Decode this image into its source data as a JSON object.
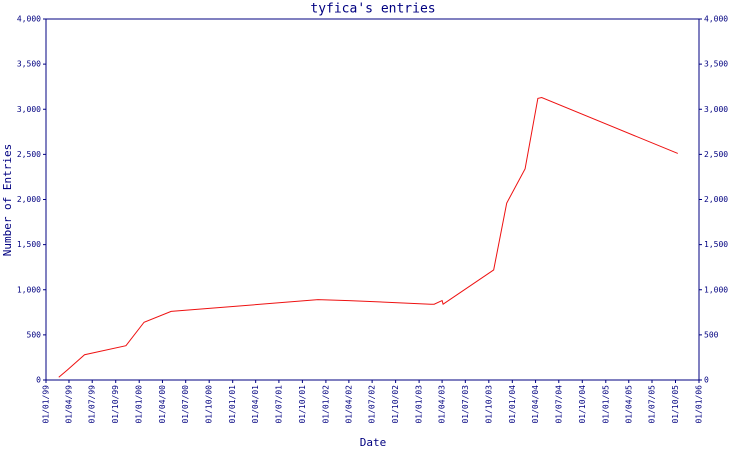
{
  "chart_data": {
    "type": "line",
    "title": "tyfica's entries",
    "xlabel": "Date",
    "ylabel": "Number of Entries",
    "x": [
      "1999-02-20",
      "1999-03-25",
      "1999-06-01",
      "1999-11-10",
      "2000-01-20",
      "2000-05-05",
      "2001-12-01",
      "2002-04-01",
      "2003-02-15",
      "2003-03-01",
      "2003-04-01",
      "2003-04-05",
      "2003-10-20",
      "2003-12-10",
      "2004-02-20",
      "2004-04-10",
      "2004-04-25",
      "2005-10-10"
    ],
    "series": [
      {
        "name": "Entries",
        "color": "#ee1111",
        "values": [
          30,
          110,
          280,
          380,
          640,
          760,
          890,
          880,
          840,
          840,
          880,
          840,
          1220,
          1960,
          2340,
          3120,
          3130,
          2510
        ]
      }
    ],
    "xlim": [
      "1999-01-01",
      "2006-01-01"
    ],
    "xticks": [
      {
        "value": "1999-01-01",
        "label": "01/01/99"
      },
      {
        "value": "1999-04-01",
        "label": "01/04/99"
      },
      {
        "value": "1999-07-01",
        "label": "01/07/99"
      },
      {
        "value": "1999-10-01",
        "label": "01/10/99"
      },
      {
        "value": "2000-01-01",
        "label": "01/01/00"
      },
      {
        "value": "2000-04-01",
        "label": "01/04/00"
      },
      {
        "value": "2000-07-01",
        "label": "01/07/00"
      },
      {
        "value": "2000-10-01",
        "label": "01/10/00"
      },
      {
        "value": "2001-01-01",
        "label": "01/01/01"
      },
      {
        "value": "2001-04-01",
        "label": "01/04/01"
      },
      {
        "value": "2001-07-01",
        "label": "01/07/01"
      },
      {
        "value": "2001-10-01",
        "label": "01/10/01"
      },
      {
        "value": "2002-01-01",
        "label": "01/01/02"
      },
      {
        "value": "2002-04-01",
        "label": "01/04/02"
      },
      {
        "value": "2002-07-01",
        "label": "01/07/02"
      },
      {
        "value": "2002-10-01",
        "label": "01/10/02"
      },
      {
        "value": "2003-01-01",
        "label": "01/01/03"
      },
      {
        "value": "2003-04-01",
        "label": "01/04/03"
      },
      {
        "value": "2003-07-01",
        "label": "01/07/03"
      },
      {
        "value": "2003-10-01",
        "label": "01/10/03"
      },
      {
        "value": "2004-01-01",
        "label": "01/01/04"
      },
      {
        "value": "2004-04-01",
        "label": "01/04/04"
      },
      {
        "value": "2004-07-01",
        "label": "01/07/04"
      },
      {
        "value": "2004-10-01",
        "label": "01/10/04"
      },
      {
        "value": "2005-01-01",
        "label": "01/01/05"
      },
      {
        "value": "2005-04-01",
        "label": "01/04/05"
      },
      {
        "value": "2005-07-01",
        "label": "01/07/05"
      },
      {
        "value": "2005-10-01",
        "label": "01/10/05"
      },
      {
        "value": "2006-01-01",
        "label": "01/01/06"
      }
    ],
    "ylim": [
      0,
      4000
    ],
    "yticks": [
      0,
      500,
      {
        "value": 1000,
        "label": "1,000"
      },
      {
        "value": 1500,
        "label": "1,500"
      },
      {
        "value": 2000,
        "label": "2,000"
      },
      {
        "value": 2500,
        "label": "2,500"
      },
      {
        "value": 3000,
        "label": "3,000"
      },
      {
        "value": 3500,
        "label": "3,500"
      },
      {
        "value": 4000,
        "label": "4,000"
      }
    ],
    "y2lim": [
      0,
      4000
    ],
    "y2ticks": [
      0,
      500,
      {
        "value": 1000,
        "label": "1,000"
      },
      {
        "value": 1500,
        "label": "1,500"
      },
      {
        "value": 2000,
        "label": "2,000"
      },
      {
        "value": 2500,
        "label": "2,500"
      },
      {
        "value": 3000,
        "label": "3,000"
      },
      {
        "value": 3500,
        "label": "3,500"
      },
      {
        "value": 4000,
        "label": "4,000"
      }
    ],
    "grid": false
  }
}
